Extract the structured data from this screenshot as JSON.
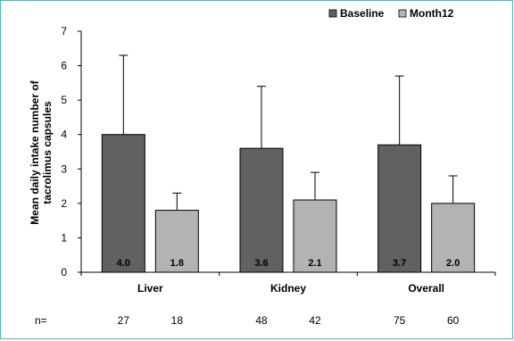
{
  "chart_data": {
    "type": "bar",
    "categories": [
      "Liver",
      "Kidney",
      "Overall"
    ],
    "ylabel_lines": [
      "Mean daily intake number of",
      "tacrolimus capsules"
    ],
    "ylim": [
      0,
      7
    ],
    "yticks": [
      "0",
      "1",
      "2",
      "3",
      "4",
      "5",
      "6",
      "7"
    ],
    "legend_position": "top-right",
    "series": [
      {
        "name": "Baseline",
        "color": "#616161",
        "values": [
          4.0,
          3.6,
          3.7
        ],
        "labels": [
          "4.0",
          "3.6",
          "3.7"
        ],
        "error_upper": [
          6.3,
          5.4,
          5.7
        ],
        "n": [
          "27",
          "48",
          "75"
        ]
      },
      {
        "name": "Month12",
        "color": "#b3b3b3",
        "values": [
          1.8,
          2.1,
          2.0
        ],
        "labels": [
          "1.8",
          "2.1",
          "2.0"
        ],
        "error_upper": [
          2.3,
          2.9,
          2.8
        ],
        "n": [
          "18",
          "42",
          "60"
        ]
      }
    ],
    "n_label": "n=",
    "grid": false
  }
}
